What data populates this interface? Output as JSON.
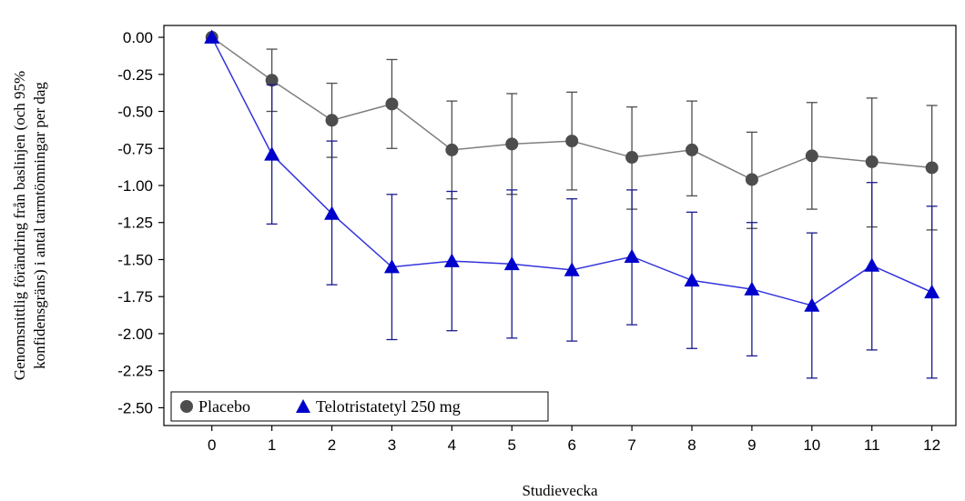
{
  "chart_data": {
    "type": "line",
    "xlabel": "Studievecka",
    "ylabel_line1": "Genomsnittlig förändring från baslinjen (och 95%",
    "ylabel_line2": "konfidensgräns) i antal tarmtömningar per dag",
    "x": [
      0,
      1,
      2,
      3,
      4,
      5,
      6,
      7,
      8,
      9,
      10,
      11,
      12
    ],
    "xlim": [
      -0.8,
      12.4
    ],
    "ylim": [
      -2.62,
      0.08
    ],
    "yticks": [
      0.0,
      -0.25,
      -0.5,
      -0.75,
      -1.0,
      -1.25,
      -1.5,
      -1.75,
      -2.0,
      -2.25,
      -2.5
    ],
    "ytick_labels": [
      "0.00",
      "-0.25",
      "-0.50",
      "-0.75",
      "-1.00",
      "-1.25",
      "-1.50",
      "-1.75",
      "-2.00",
      "-2.25",
      "-2.50"
    ],
    "xtick_labels": [
      "0",
      "1",
      "2",
      "3",
      "4",
      "5",
      "6",
      "7",
      "8",
      "9",
      "10",
      "11",
      "12"
    ],
    "legend_placement": "bottom-left",
    "series": [
      {
        "name": "Placebo",
        "marker": "circle",
        "color": "#4d4d4d",
        "line_color": "#7f7f7f",
        "errorbar_color": "#4d4d4d",
        "values": [
          0.0,
          -0.29,
          -0.56,
          -0.45,
          -0.76,
          -0.72,
          -0.7,
          -0.81,
          -0.76,
          -0.96,
          -0.8,
          -0.84,
          -0.88
        ],
        "lower": [
          0.0,
          -0.5,
          -0.81,
          -0.75,
          -1.09,
          -1.06,
          -1.03,
          -1.16,
          -1.07,
          -1.29,
          -1.16,
          -1.28,
          -1.3
        ],
        "upper": [
          0.0,
          -0.08,
          -0.31,
          -0.15,
          -0.43,
          -0.38,
          -0.37,
          -0.47,
          -0.43,
          -0.64,
          -0.44,
          -0.41,
          -0.46
        ]
      },
      {
        "name": "Telotristatetyl 250 mg",
        "marker": "triangle",
        "color": "#0000cc",
        "line_color": "#3333dd",
        "errorbar_color": "#1a1a8c",
        "values": [
          0.0,
          -0.79,
          -1.19,
          -1.55,
          -1.51,
          -1.53,
          -1.57,
          -1.48,
          -1.64,
          -1.7,
          -1.81,
          -1.54,
          -1.72
        ],
        "lower": [
          0.0,
          -1.26,
          -1.67,
          -2.04,
          -1.98,
          -2.03,
          -2.05,
          -1.94,
          -2.1,
          -2.15,
          -2.3,
          -2.11,
          -2.3
        ],
        "upper": [
          0.0,
          -0.32,
          -0.7,
          -1.06,
          -1.04,
          -1.03,
          -1.09,
          -1.03,
          -1.18,
          -1.25,
          -1.32,
          -0.98,
          -1.14
        ]
      }
    ]
  }
}
